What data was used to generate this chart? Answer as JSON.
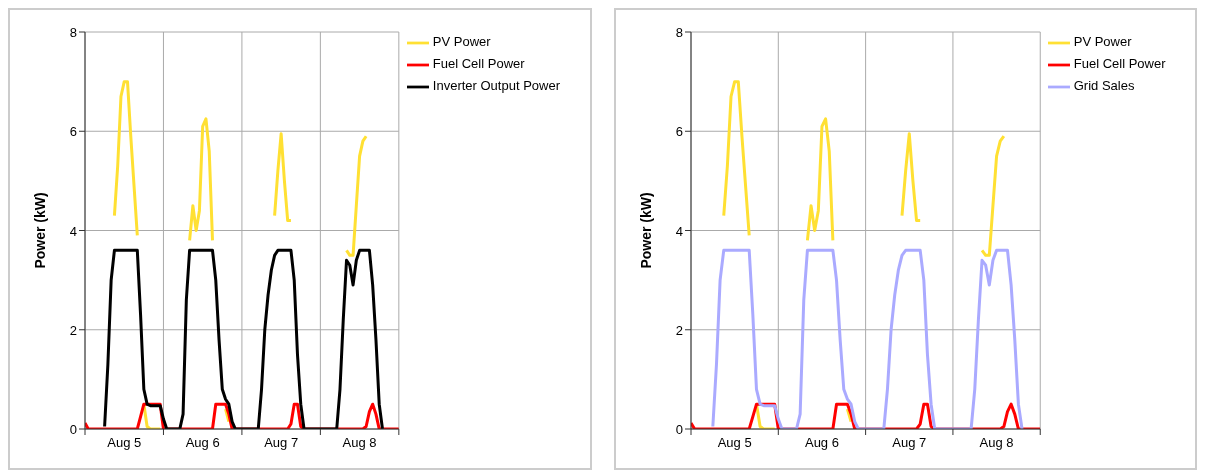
{
  "chart_data": [
    {
      "type": "line",
      "ylabel": "Power (kW)",
      "ylim": [
        0,
        8
      ],
      "yticks": [
        0,
        2,
        4,
        6,
        8
      ],
      "grid": true,
      "legend": "top right",
      "marker": "none",
      "line_style": "solid",
      "categories": [
        null,
        null,
        null,
        null,
        null,
        null,
        null,
        null,
        null,
        null,
        null,
        null,
        "Aug 5",
        null,
        null,
        null,
        null,
        null,
        null,
        null,
        null,
        null,
        null,
        null,
        null,
        null,
        null,
        null,
        null,
        null,
        null,
        null,
        null,
        null,
        null,
        null,
        "Aug 6",
        null,
        null,
        null,
        null,
        null,
        null,
        null,
        null,
        null,
        null,
        null,
        null,
        null,
        null,
        null,
        null,
        null,
        null,
        null,
        null,
        null,
        null,
        null,
        "Aug 7",
        null,
        null,
        null,
        null,
        null,
        null,
        null,
        null,
        null,
        null,
        null,
        null,
        null,
        null,
        null,
        null,
        null,
        null,
        null,
        null,
        null,
        null,
        null,
        "Aug 8",
        null,
        null,
        null,
        null,
        null,
        null,
        null,
        null,
        null,
        null,
        null,
        null
      ],
      "series": [
        {
          "name": "PV Power",
          "color": "#ffe033",
          "values": [
            null,
            null,
            null,
            null,
            null,
            null,
            null,
            null,
            null,
            4.3,
            5.3,
            6.7,
            7.0,
            7.0,
            5.9,
            4.9,
            3.9,
            null,
            0.5,
            0.05,
            0,
            0,
            0,
            0,
            null,
            null,
            null,
            null,
            null,
            null,
            null,
            null,
            3.8,
            4.5,
            4.0,
            4.4,
            6.1,
            6.25,
            5.6,
            3.8,
            null,
            null,
            null,
            0.4,
            0.15,
            null,
            null,
            null,
            null,
            null,
            null,
            null,
            null,
            null,
            null,
            null,
            null,
            null,
            4.3,
            5.2,
            5.95,
            5.0,
            4.2,
            4.2,
            null,
            null,
            null,
            null,
            null,
            null,
            null,
            null,
            null,
            null,
            null,
            null,
            null,
            null,
            null,
            null,
            3.6,
            3.5,
            3.5,
            4.5,
            5.5,
            5.8,
            5.9,
            null,
            null,
            null,
            null,
            null,
            null,
            null,
            null,
            null,
            null
          ]
        },
        {
          "name": "Fuel Cell Power",
          "color": "#ff0000",
          "values": [
            0.12,
            0,
            0,
            0,
            0,
            0,
            0,
            0,
            0,
            0,
            0,
            0,
            0,
            0,
            0,
            0,
            0,
            0.25,
            0.5,
            0.5,
            0.5,
            0.5,
            0.5,
            0.5,
            0,
            0,
            0,
            0,
            0,
            0,
            0,
            0,
            0,
            0,
            0,
            0,
            0,
            0,
            0,
            0,
            0.5,
            0.5,
            0.5,
            0.5,
            0.3,
            0,
            0,
            0,
            0,
            0,
            0,
            0,
            0,
            0,
            0,
            0,
            0,
            0,
            0,
            0,
            0,
            0,
            0,
            0.1,
            0.5,
            0.5,
            0.05,
            0,
            0,
            0,
            0,
            0,
            0,
            0,
            0,
            0,
            0,
            0,
            0,
            0,
            0,
            0,
            0,
            0,
            0,
            0,
            0.05,
            0.35,
            0.5,
            0.3,
            0,
            0,
            0,
            0,
            0,
            0,
            0
          ]
        },
        {
          "name": "Inverter Output Power",
          "color": "#000000",
          "values": [
            null,
            null,
            null,
            null,
            null,
            null,
            0.05,
            1.3,
            3.0,
            3.6,
            3.6,
            3.6,
            3.6,
            3.6,
            3.6,
            3.6,
            3.6,
            2.3,
            0.8,
            0.5,
            0.47,
            0.47,
            0.47,
            0.47,
            0.2,
            0,
            0,
            0,
            0,
            0,
            0.3,
            2.6,
            3.6,
            3.6,
            3.6,
            3.6,
            3.6,
            3.6,
            3.6,
            3.6,
            3.0,
            1.8,
            0.8,
            0.6,
            0.5,
            0.15,
            0,
            0,
            0,
            0,
            0,
            0,
            0,
            0,
            0.8,
            2.0,
            2.7,
            3.2,
            3.5,
            3.6,
            3.6,
            3.6,
            3.6,
            3.6,
            3.0,
            1.5,
            0.5,
            0,
            0,
            0,
            0,
            0,
            0,
            0,
            0,
            0,
            0,
            0,
            0.8,
            2.2,
            3.4,
            3.3,
            2.9,
            3.4,
            3.6,
            3.6,
            3.6,
            3.6,
            2.9,
            1.8,
            0.5,
            0,
            null,
            null,
            null,
            null,
            null
          ]
        }
      ]
    },
    {
      "type": "line",
      "ylabel": "Power (kW)",
      "ylim": [
        0,
        8
      ],
      "yticks": [
        0,
        2,
        4,
        6,
        8
      ],
      "grid": true,
      "legend": "top right",
      "marker": "none",
      "line_style": "solid",
      "categories": [
        null,
        null,
        null,
        null,
        null,
        null,
        null,
        null,
        null,
        null,
        null,
        null,
        "Aug 5",
        null,
        null,
        null,
        null,
        null,
        null,
        null,
        null,
        null,
        null,
        null,
        null,
        null,
        null,
        null,
        null,
        null,
        null,
        null,
        null,
        null,
        null,
        null,
        "Aug 6",
        null,
        null,
        null,
        null,
        null,
        null,
        null,
        null,
        null,
        null,
        null,
        null,
        null,
        null,
        null,
        null,
        null,
        null,
        null,
        null,
        null,
        null,
        null,
        "Aug 7",
        null,
        null,
        null,
        null,
        null,
        null,
        null,
        null,
        null,
        null,
        null,
        null,
        null,
        null,
        null,
        null,
        null,
        null,
        null,
        null,
        null,
        null,
        null,
        "Aug 8",
        null,
        null,
        null,
        null,
        null,
        null,
        null,
        null,
        null,
        null,
        null,
        null
      ],
      "series": [
        {
          "name": "PV Power",
          "color": "#ffe033",
          "values": [
            null,
            null,
            null,
            null,
            null,
            null,
            null,
            null,
            null,
            4.3,
            5.3,
            6.7,
            7.0,
            7.0,
            5.9,
            4.9,
            3.9,
            null,
            0.5,
            0.05,
            0,
            0,
            0,
            0,
            null,
            null,
            null,
            null,
            null,
            null,
            null,
            null,
            3.8,
            4.5,
            4.0,
            4.4,
            6.1,
            6.25,
            5.6,
            3.8,
            null,
            null,
            null,
            0.4,
            0.15,
            null,
            null,
            null,
            null,
            null,
            null,
            null,
            null,
            null,
            null,
            null,
            null,
            null,
            4.3,
            5.2,
            5.95,
            5.0,
            4.2,
            4.2,
            null,
            null,
            null,
            null,
            null,
            null,
            null,
            null,
            null,
            null,
            null,
            null,
            null,
            null,
            null,
            null,
            3.6,
            3.5,
            3.5,
            4.5,
            5.5,
            5.8,
            5.9,
            null,
            null,
            null,
            null,
            null,
            null,
            null,
            null,
            null,
            null
          ]
        },
        {
          "name": "Fuel Cell Power",
          "color": "#ff0000",
          "values": [
            0.12,
            0,
            0,
            0,
            0,
            0,
            0,
            0,
            0,
            0,
            0,
            0,
            0,
            0,
            0,
            0,
            0,
            0.25,
            0.5,
            0.5,
            0.5,
            0.5,
            0.5,
            0.5,
            0,
            0,
            0,
            0,
            0,
            0,
            0,
            0,
            0,
            0,
            0,
            0,
            0,
            0,
            0,
            0,
            0.5,
            0.5,
            0.5,
            0.5,
            0.3,
            0,
            0,
            0,
            0,
            0,
            0,
            0,
            0,
            0,
            0,
            0,
            0,
            0,
            0,
            0,
            0,
            0,
            0,
            0.1,
            0.5,
            0.5,
            0.05,
            0,
            0,
            0,
            0,
            0,
            0,
            0,
            0,
            0,
            0,
            0,
            0,
            0,
            0,
            0,
            0,
            0,
            0,
            0,
            0.05,
            0.35,
            0.5,
            0.3,
            0,
            0,
            0,
            0,
            0,
            0,
            0
          ]
        },
        {
          "name": "Grid Sales",
          "color": "#aaaaff",
          "values": [
            null,
            null,
            null,
            null,
            null,
            null,
            0.05,
            1.3,
            3.0,
            3.6,
            3.6,
            3.6,
            3.6,
            3.6,
            3.6,
            3.6,
            3.6,
            2.3,
            0.8,
            0.5,
            0.47,
            0.47,
            0.47,
            0.47,
            0.2,
            0,
            0,
            0,
            0,
            0,
            0.3,
            2.6,
            3.6,
            3.6,
            3.6,
            3.6,
            3.6,
            3.6,
            3.6,
            3.6,
            3.0,
            1.8,
            0.8,
            0.6,
            0.5,
            0.15,
            0,
            0,
            0,
            0,
            0,
            0,
            0,
            0,
            0.8,
            2.0,
            2.7,
            3.2,
            3.5,
            3.6,
            3.6,
            3.6,
            3.6,
            3.6,
            3.0,
            1.5,
            0.5,
            0,
            0,
            0,
            0,
            0,
            0,
            0,
            0,
            0,
            0,
            0,
            0.8,
            2.2,
            3.4,
            3.3,
            2.9,
            3.4,
            3.6,
            3.6,
            3.6,
            3.6,
            2.9,
            1.8,
            0.5,
            0,
            null,
            null,
            null,
            null,
            null
          ]
        }
      ]
    }
  ]
}
